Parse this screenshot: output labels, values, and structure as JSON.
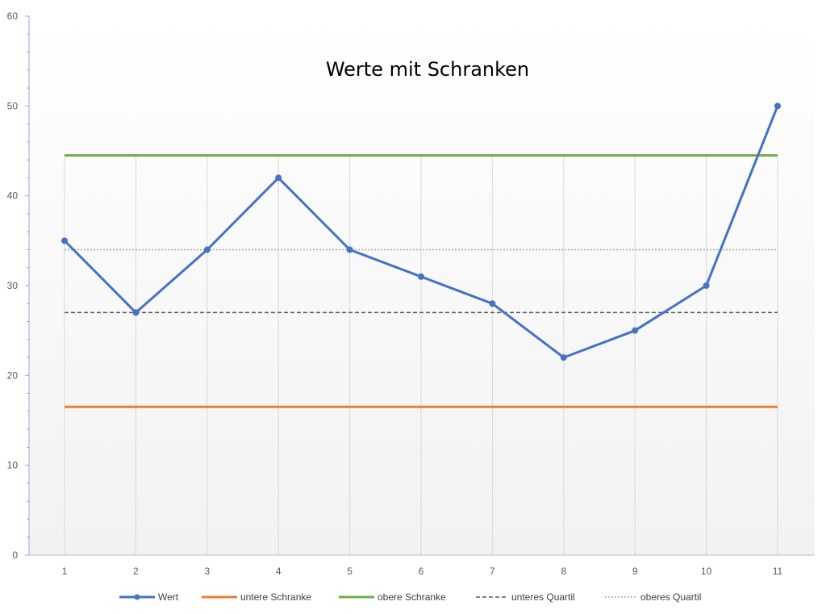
{
  "chart_data": {
    "type": "line",
    "title": "Werte mit Schranken",
    "xlabel": "",
    "ylabel": "",
    "x": [
      1,
      2,
      3,
      4,
      5,
      6,
      7,
      8,
      9,
      10,
      11
    ],
    "ylim": [
      0,
      60
    ],
    "yticks": [
      0,
      10,
      20,
      30,
      40,
      50,
      60
    ],
    "grid": "vertical",
    "legend_position": "bottom",
    "series": [
      {
        "name": "Wert",
        "values": [
          35,
          27,
          34,
          42,
          34,
          31,
          28,
          22,
          25,
          30,
          50
        ],
        "color": "#4472C4",
        "style": "solid",
        "markers": true
      },
      {
        "name": "untere Schranke",
        "values": [
          16.5,
          16.5,
          16.5,
          16.5,
          16.5,
          16.5,
          16.5,
          16.5,
          16.5,
          16.5,
          16.5
        ],
        "color": "#ED7D31",
        "style": "solid",
        "markers": false
      },
      {
        "name": "obere Schranke",
        "values": [
          44.5,
          44.5,
          44.5,
          44.5,
          44.5,
          44.5,
          44.5,
          44.5,
          44.5,
          44.5,
          44.5
        ],
        "color": "#70AD47",
        "style": "solid",
        "markers": false
      },
      {
        "name": "unteres Quartil",
        "values": [
          27,
          27,
          27,
          27,
          27,
          27,
          27,
          27,
          27,
          27,
          27
        ],
        "color": "#595959",
        "style": "dashed",
        "markers": false
      },
      {
        "name": "oberes Quartil",
        "values": [
          34,
          34,
          34,
          34,
          34,
          34,
          34,
          34,
          34,
          34,
          34
        ],
        "color": "#A6A6A6",
        "style": "dotted",
        "markers": false
      }
    ]
  }
}
